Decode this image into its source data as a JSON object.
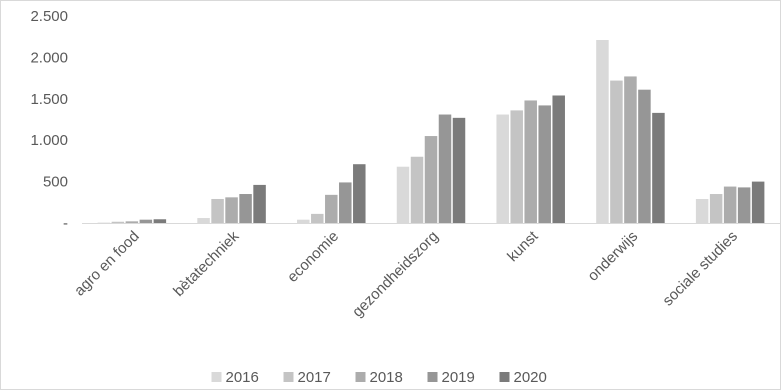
{
  "chart_data": {
    "type": "bar",
    "title": "",
    "xlabel": "",
    "ylabel": "",
    "ylim": [
      0,
      2500
    ],
    "y_ticks": [
      {
        "value": 0,
        "label": "-"
      },
      {
        "value": 500,
        "label": "500"
      },
      {
        "value": 1000,
        "label": "1.000"
      },
      {
        "value": 1500,
        "label": "1.500"
      },
      {
        "value": 2000,
        "label": "2.000"
      },
      {
        "value": 2500,
        "label": "2.500"
      }
    ],
    "categories": [
      "agro en food",
      "bètatechniek",
      "economie",
      "gezondheidszorg",
      "kunst",
      "onderwijs",
      "sociale studies"
    ],
    "series": [
      {
        "name": "2016",
        "color": "#d9d9d9",
        "values": [
          5,
          60,
          40,
          680,
          1310,
          2210,
          290
        ]
      },
      {
        "name": "2017",
        "color": "#c4c4c4",
        "values": [
          15,
          290,
          110,
          800,
          1360,
          1720,
          350
        ]
      },
      {
        "name": "2018",
        "color": "#acacac",
        "values": [
          20,
          310,
          340,
          1050,
          1480,
          1770,
          440
        ]
      },
      {
        "name": "2019",
        "color": "#969696",
        "values": [
          40,
          350,
          490,
          1310,
          1420,
          1610,
          430
        ]
      },
      {
        "name": "2020",
        "color": "#7b7b7b",
        "values": [
          45,
          460,
          710,
          1270,
          1540,
          1330,
          500
        ]
      }
    ],
    "legend_position": "bottom",
    "grid": false
  }
}
